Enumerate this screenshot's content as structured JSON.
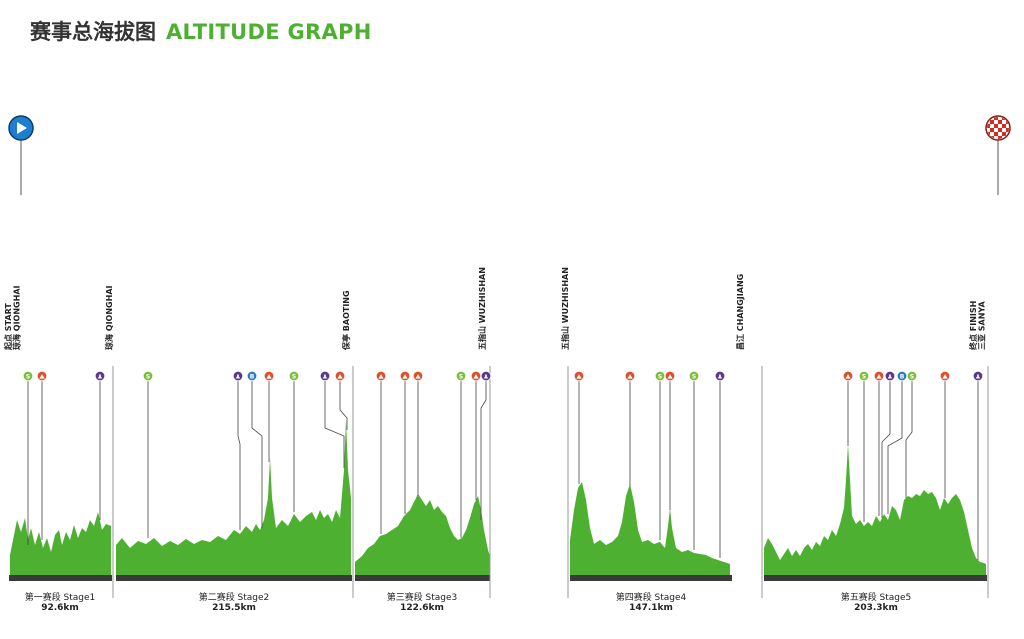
{
  "header": {
    "title_zh": "赛事总海拔图",
    "title_en": "ALTITUDE GRAPH"
  },
  "colors": {
    "terrain": "#4db030",
    "title_accent": "#4db030",
    "baseline": "#3a3a3a",
    "start_flag": "#1e7fd0",
    "finish_flag": "#d32b1e",
    "sprint": "#7dbf3a",
    "climb": "#e0502a",
    "feed": "#5a3a8a",
    "bonus": "#2a7ec0"
  },
  "icons": {
    "start": "play-marker-icon",
    "finish": "checkered-flag-icon"
  },
  "place_labels": {
    "start": "起点 START\n琼海 QIONGHAI",
    "qionghai": "琼海 QIONGHAI",
    "baoting": "保亭 BAOTING",
    "wuzhishan_end": "五指山 WUZHISHAN",
    "wuzhishan_start": "五指山 WUZHISHAN",
    "changjiang": "昌江 CHANGJIANG",
    "finish": "终点 FINISH\n三亚 SANYA"
  },
  "stages": [
    {
      "name": "第一赛段 Stage1",
      "distance": "92.6km"
    },
    {
      "name": "第二赛段 Stage2",
      "distance": "215.5km"
    },
    {
      "name": "第三赛段 Stage3",
      "distance": "122.6km"
    },
    {
      "name": "第四赛段 Stage4",
      "distance": "147.1km"
    },
    {
      "name": "第五赛段 Stage5",
      "distance": "203.3km"
    }
  ],
  "marker_glyphs": {
    "sprint": "S",
    "climb": "⛰",
    "feed": "♟",
    "bonus": "B"
  }
}
